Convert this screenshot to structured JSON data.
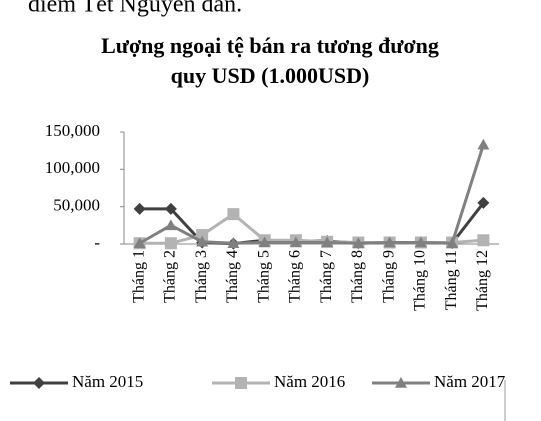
{
  "page_text": "điểm Tết Nguyên đán.",
  "chart_data": {
    "type": "line",
    "title": [
      "Lượng ngoại tệ bán ra tương đương",
      "quy USD (1.000USD)"
    ],
    "categories": [
      "Tháng 1",
      "Tháng 2",
      "Tháng 3",
      "Tháng 4",
      "Tháng 5",
      "Tháng 6",
      "Tháng 7",
      "Tháng 8",
      "Tháng 9",
      "Tháng 10",
      "Tháng 11",
      "Tháng 12"
    ],
    "series": [
      {
        "name": "Năm 2015",
        "color": "#404040",
        "marker": "diamond",
        "values": [
          47000,
          47000,
          2000,
          500,
          5000,
          4000,
          4000,
          1000,
          2000,
          2000,
          1000,
          55000
        ]
      },
      {
        "name": "Năm 2016",
        "color": "#b3b3b3",
        "marker": "square",
        "values": [
          1000,
          1000,
          12000,
          40000,
          5000,
          5000,
          3000,
          2000,
          2000,
          2000,
          2000,
          5000
        ]
      },
      {
        "name": "Năm 2017",
        "color": "#808080",
        "marker": "triangle",
        "values": [
          1000,
          25000,
          3000,
          1000,
          2000,
          2000,
          2000,
          1000,
          2000,
          2000,
          1000,
          133000
        ]
      }
    ],
    "ylim": [
      0,
      150000
    ],
    "yticks": [
      {
        "value": 0,
        "label": "-"
      },
      {
        "value": 50000,
        "label": "50,000"
      },
      {
        "value": 100000,
        "label": "100,000"
      },
      {
        "value": 150000,
        "label": "150,000"
      }
    ],
    "legend": "bottom"
  }
}
